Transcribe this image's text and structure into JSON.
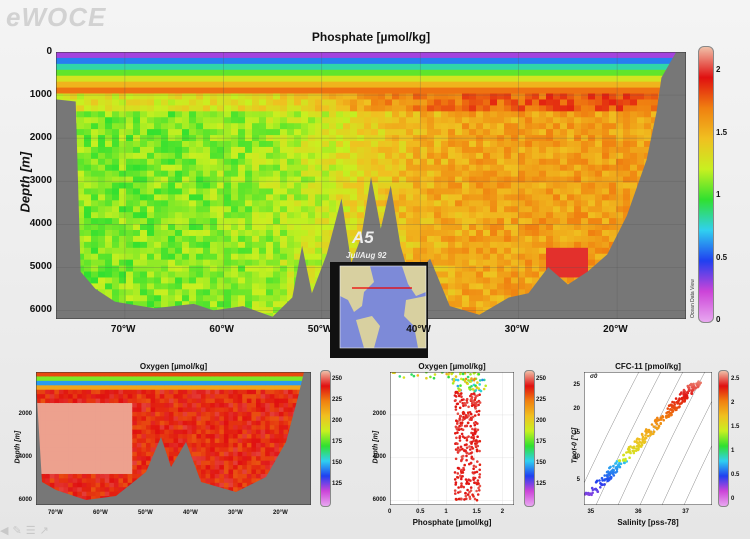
{
  "brand": "eWOCE",
  "watermark": "Ocean Data View",
  "section": {
    "name": "A5",
    "dates": "Jul/Aug 92"
  },
  "colors": {
    "land": "#777777",
    "scale": [
      "#e8a8f0",
      "#cc44d8",
      "#2040f0",
      "#30d0f0",
      "#30e030",
      "#c8f020",
      "#f0c020",
      "#f08010",
      "#e01010",
      "#f0c0a8"
    ]
  },
  "icons": [
    "triangle-icon",
    "pencil-icon",
    "menu-icon",
    "share-icon"
  ],
  "chart_data": [
    {
      "type": "heatmap",
      "title": "Phosphate [µmol/kg]",
      "xlabel": "",
      "ylabel": "Depth [m]",
      "x_ticks": [
        "70°W",
        "60°W",
        "50°W",
        "40°W",
        "30°W",
        "20°W"
      ],
      "y_ticks": [
        "0",
        "1000",
        "2000",
        "3000",
        "4000",
        "5000",
        "6000"
      ],
      "xlim": [
        -77,
        -13
      ],
      "ylim": [
        6200,
        0
      ],
      "colorbar": {
        "ticks": [
          "2",
          "1.5",
          "1",
          "0.5",
          "0"
        ],
        "range": [
          0,
          2.2
        ]
      },
      "surface_min": 0.1,
      "deep_west": 1.1,
      "deep_east": 1.6,
      "core_max": 2.0
    },
    {
      "type": "heatmap",
      "title": "Oxygen [µmol/kg]",
      "xlabel": "",
      "ylabel": "Depth [m]",
      "x_ticks": [
        "70°W",
        "60°W",
        "50°W",
        "40°W",
        "30°W",
        "20°W"
      ],
      "y_ticks": [
        "2000",
        "4000",
        "6000"
      ],
      "ylim": [
        6200,
        0
      ],
      "colorbar": {
        "ticks": [
          "250",
          "225",
          "200",
          "175",
          "150",
          "125"
        ],
        "range": [
          110,
          265
        ]
      }
    },
    {
      "type": "scatter",
      "title": "Oxygen [µmol/kg]",
      "xlabel": "Phosphate [µmol/kg]",
      "ylabel": "Depth [m]",
      "x_ticks": [
        "0",
        "0.5",
        "1",
        "1.5",
        "2"
      ],
      "y_ticks": [
        "2000",
        "4000",
        "6000"
      ],
      "xlim": [
        0,
        2.2
      ],
      "ylim": [
        6200,
        0
      ],
      "colorbar": {
        "ticks": [
          "250",
          "225",
          "200",
          "175",
          "150",
          "125"
        ]
      }
    },
    {
      "type": "scatter",
      "title": "CFC-11 [pmol/kg]",
      "xlabel": "Salinity [pss-78]",
      "ylabel": "Tpot-0 [°C]",
      "x_ticks": [
        "35",
        "36",
        "37"
      ],
      "y_ticks": [
        "5",
        "10",
        "15",
        "20",
        "25"
      ],
      "xlim": [
        34.8,
        37.5
      ],
      "ylim": [
        0,
        28
      ],
      "colorbar": {
        "ticks": [
          "2.5",
          "2",
          "1.5",
          "1",
          "0.5",
          "0"
        ]
      },
      "density_label": "σ0"
    }
  ]
}
